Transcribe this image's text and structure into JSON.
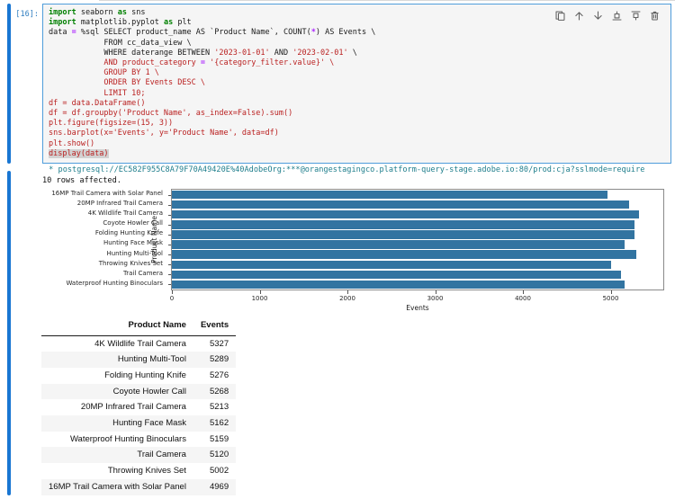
{
  "notebook": {
    "cell": {
      "execution_count": "[16]:",
      "toolbar": [
        {
          "name": "duplicate-cell",
          "label": "duplicate this cell"
        },
        {
          "name": "move-cell-up",
          "label": "move this cell up"
        },
        {
          "name": "move-cell-down",
          "label": "move this cell down"
        },
        {
          "name": "insert-cell-above",
          "label": "insert a cell above"
        },
        {
          "name": "insert-cell-below",
          "label": "insert a cell below"
        },
        {
          "name": "delete-cell",
          "label": "delete this cell"
        }
      ],
      "code_lines": [
        {
          "segments": [
            {
              "style": "kw",
              "text": "import"
            },
            {
              "style": "pl",
              "text": " seaborn "
            },
            {
              "style": "kw",
              "text": "as"
            },
            {
              "style": "pl",
              "text": " sns"
            }
          ]
        },
        {
          "segments": [
            {
              "style": "kw",
              "text": "import"
            },
            {
              "style": "pl",
              "text": " matplotlib.pyplot "
            },
            {
              "style": "kw",
              "text": "as"
            },
            {
              "style": "pl",
              "text": " plt"
            }
          ]
        },
        {
          "segments": [
            {
              "style": "pl",
              "text": "data "
            },
            {
              "style": "op",
              "text": "="
            },
            {
              "style": "pl",
              "text": " %sql SELECT product_name AS `Product Name`, COUNT("
            },
            {
              "style": "op",
              "text": "*"
            },
            {
              "style": "pl",
              "text": ") AS Events \\"
            }
          ]
        },
        {
          "segments": [
            {
              "style": "pl",
              "text": "            FROM cc_data_view \\"
            }
          ]
        },
        {
          "segments": [
            {
              "style": "pl",
              "text": "            WHERE daterange BETWEEN "
            },
            {
              "style": "str",
              "text": "'2023-01-01'"
            },
            {
              "style": "pl",
              "text": " AND "
            },
            {
              "style": "str",
              "text": "'2023-02-01'"
            },
            {
              "style": "pl",
              "text": " \\"
            }
          ]
        },
        {
          "segments": [
            {
              "style": "str",
              "text": "            AND product_category "
            },
            {
              "style": "op",
              "text": "="
            },
            {
              "style": "str",
              "text": " '{category_filter.value}' \\"
            }
          ]
        },
        {
          "segments": [
            {
              "style": "str",
              "text": "            GROUP BY 1 \\"
            }
          ]
        },
        {
          "segments": [
            {
              "style": "str",
              "text": "            ORDER BY Events DESC \\"
            }
          ]
        },
        {
          "segments": [
            {
              "style": "str",
              "text": "            LIMIT 10;"
            }
          ]
        },
        {
          "segments": [
            {
              "style": "str",
              "text": "df = data.DataFrame()"
            }
          ]
        },
        {
          "segments": [
            {
              "style": "str",
              "text": "df = df.groupby('Product Name', as_index=False).sum()"
            }
          ]
        },
        {
          "segments": [
            {
              "style": "str",
              "text": "plt.figure(figsize=(15, 3))"
            }
          ]
        },
        {
          "segments": [
            {
              "style": "str",
              "text": "sns.barplot(x='Events', y='Product Name', data=df)"
            }
          ]
        },
        {
          "segments": [
            {
              "style": "str",
              "text": "plt.show()"
            }
          ]
        },
        {
          "segments": [
            {
              "style": "str",
              "text": "display(data)"
            }
          ],
          "selected": true
        }
      ]
    },
    "output": {
      "connection_line": " * postgresql://EC582F955C8A79F70A49420E%40AdobeOrg:***@orangestagingco.platform-query-stage.adobe.io:80/prod:cja?sslmode=require",
      "rows_affected": "10 rows affected."
    }
  },
  "chart_data": {
    "type": "bar",
    "orientation": "horizontal",
    "title": "",
    "xlabel": "Events",
    "ylabel": "Product Name",
    "xlim": [
      0,
      5600
    ],
    "xticks": [
      0,
      1000,
      2000,
      3000,
      4000,
      5000
    ],
    "grid": false,
    "bar_color": "#3274a1",
    "categories": [
      "16MP Trail Camera with Solar Panel",
      "20MP Infrared Trail Camera",
      "4K Wildlife Trail Camera",
      "Coyote Howler Call",
      "Folding Hunting Knife",
      "Hunting Face Mask",
      "Hunting Multi-Tool",
      "Throwing Knives Set",
      "Trail Camera",
      "Waterproof Hunting Binoculars"
    ],
    "values": [
      4969,
      5213,
      5327,
      5268,
      5276,
      5162,
      5289,
      5002,
      5120,
      5159
    ]
  },
  "table": {
    "columns": [
      "Product Name",
      "Events"
    ],
    "rows": [
      [
        "4K Wildlife Trail Camera",
        "5327"
      ],
      [
        "Hunting Multi-Tool",
        "5289"
      ],
      [
        "Folding Hunting Knife",
        "5276"
      ],
      [
        "Coyote Howler Call",
        "5268"
      ],
      [
        "20MP Infrared Trail Camera",
        "5213"
      ],
      [
        "Hunting Face Mask",
        "5162"
      ],
      [
        "Waterproof Hunting Binoculars",
        "5159"
      ],
      [
        "Trail Camera",
        "5120"
      ],
      [
        "Throwing Knives Set",
        "5002"
      ],
      [
        "16MP Trail Camera with Solar Panel",
        "4969"
      ]
    ]
  },
  "colors": {
    "cell_border": "#4f9ddb",
    "collapser": "#1976d2",
    "prompt": "#307fc1",
    "cell_background": "#f5f5f5",
    "keyword": "#008000",
    "operator": "#aa22ff",
    "string": "#ba2121",
    "connection_text": "#1f7e8c",
    "bar": "#3274a1",
    "row_stripe": "#f5f5f5"
  }
}
